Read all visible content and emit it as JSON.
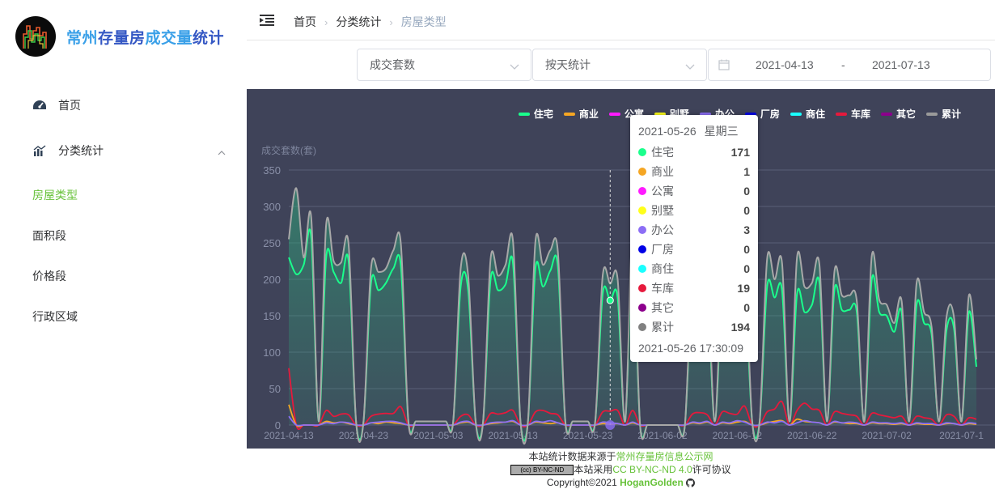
{
  "brand": {
    "title_part1": "常州",
    "title_part2": "存量房",
    "title_part3": "成交量",
    "title_part4": "统计"
  },
  "sidebar": {
    "home": "首页",
    "category": "分类统计",
    "sub": [
      "房屋类型",
      "面积段",
      "价格段",
      "行政区域"
    ]
  },
  "breadcrumb": {
    "home": "首页",
    "category": "分类统计",
    "current": "房屋类型"
  },
  "filters": {
    "metric": "成交套数",
    "granularity": "按天统计",
    "start_date": "2021-04-13",
    "separator": "-",
    "end_date": "2021-07-13"
  },
  "chart": {
    "ylabel": "成交套数(套)",
    "legend": [
      "住宅",
      "商业",
      "公寓",
      "别墅",
      "办公",
      "厂房",
      "商住",
      "车库",
      "其它",
      "累计"
    ],
    "colors": {
      "住宅": "#1aff8c",
      "商业": "#f5a623",
      "公寓": "#ff1aff",
      "别墅": "#ffff1a",
      "办公": "#8c6ef5",
      "厂房": "#0000e6",
      "商住": "#1affff",
      "车库": "#e6193c",
      "其它": "#8c008c",
      "累计": "#9a9a9a"
    }
  },
  "tooltip": {
    "date": "2021-05-26",
    "weekday": "星期三",
    "rows": [
      {
        "name": "住宅",
        "value": "171",
        "color": "#1aff8c"
      },
      {
        "name": "商业",
        "value": "1",
        "color": "#f5a623"
      },
      {
        "name": "公寓",
        "value": "0",
        "color": "#ff1aff"
      },
      {
        "name": "别墅",
        "value": "0",
        "color": "#ffff1a"
      },
      {
        "name": "办公",
        "value": "3",
        "color": "#8c6ef5"
      },
      {
        "name": "厂房",
        "value": "0",
        "color": "#0000e6"
      },
      {
        "name": "商住",
        "value": "0",
        "color": "#1affff"
      },
      {
        "name": "车库",
        "value": "19",
        "color": "#e6193c"
      },
      {
        "name": "其它",
        "value": "0",
        "color": "#8c008c"
      },
      {
        "name": "累计",
        "value": "194",
        "color": "#808080"
      }
    ],
    "timestamp": "2021-05-26 17:30:09"
  },
  "chart_data": {
    "type": "line",
    "ylabel": "成交套数(套)",
    "ylim": [
      0,
      350
    ],
    "yticks": [
      0,
      50,
      100,
      150,
      200,
      250,
      300,
      350
    ],
    "xticks": [
      "2021-04-13",
      "2021-04-23",
      "2021-05-03",
      "2021-05-13",
      "2021-05-23",
      "2021-06-02",
      "2021-06-12",
      "2021-06-22",
      "2021-07-02",
      "2021-07-1"
    ],
    "x_start": "2021-04-13",
    "x_end": "2021-07-13",
    "grid": true,
    "legend_position": "top-right",
    "series": [
      {
        "name": "住宅",
        "values": [
          230,
          207,
          220,
          258,
          5,
          230,
          210,
          195,
          225,
          5,
          5,
          195,
          185,
          195,
          215,
          218,
          5,
          5,
          5,
          5,
          5,
          5,
          5,
          190,
          185,
          5,
          5,
          200,
          185,
          193,
          222,
          5,
          5,
          215,
          190,
          212,
          218,
          5,
          5,
          5,
          5,
          5,
          180,
          171,
          175,
          5,
          235,
          0,
          0,
          0,
          0,
          0,
          0,
          0,
          200,
          190,
          185,
          5,
          190,
          195,
          170,
          193,
          5,
          5,
          190,
          175,
          185,
          5,
          180,
          155,
          165,
          195,
          5,
          185,
          158,
          158,
          155,
          5,
          200,
          155,
          150,
          128,
          155,
          5,
          165,
          140,
          125,
          5,
          130,
          133,
          5,
          155,
          80
        ]
      },
      {
        "name": "车库",
        "values": [
          78,
          0,
          0,
          0,
          0,
          20,
          12,
          15,
          14,
          0,
          0,
          12,
          15,
          16,
          16,
          25,
          0,
          0,
          0,
          0,
          0,
          0,
          0,
          12,
          14,
          0,
          0,
          16,
          15,
          17,
          20,
          0,
          0,
          18,
          20,
          16,
          14,
          0,
          0,
          0,
          0,
          0,
          18,
          19,
          20,
          0,
          20,
          0,
          0,
          0,
          0,
          0,
          0,
          0,
          15,
          17,
          14,
          0,
          18,
          16,
          15,
          26,
          0,
          0,
          18,
          22,
          32,
          0,
          20,
          30,
          22,
          20,
          0,
          18,
          16,
          14,
          12,
          0,
          16,
          14,
          12,
          10,
          12,
          0,
          12,
          10,
          8,
          0,
          14,
          12,
          0,
          10,
          8
        ]
      },
      {
        "name": "商业",
        "values": [
          28,
          0,
          0,
          0,
          0,
          5,
          3,
          4,
          2,
          0,
          0,
          3,
          2,
          4,
          3,
          2,
          0,
          0,
          0,
          0,
          0,
          0,
          0,
          3,
          4,
          0,
          0,
          2,
          3,
          4,
          5,
          0,
          0,
          4,
          3,
          2,
          3,
          0,
          0,
          0,
          0,
          0,
          2,
          1,
          2,
          0,
          3,
          0,
          0,
          0,
          0,
          0,
          0,
          0,
          3,
          2,
          4,
          0,
          3,
          2,
          4,
          5,
          0,
          0,
          3,
          5,
          6,
          0,
          8,
          5,
          4,
          3,
          0,
          4,
          3,
          2,
          2,
          0,
          3,
          2,
          2,
          1,
          2,
          0,
          2,
          1,
          1,
          0,
          2,
          2,
          0,
          2,
          1
        ]
      },
      {
        "name": "办公",
        "values": [
          12,
          0,
          0,
          0,
          0,
          3,
          2,
          4,
          3,
          0,
          0,
          3,
          4,
          5,
          5,
          3,
          0,
          0,
          0,
          0,
          0,
          0,
          0,
          4,
          5,
          0,
          0,
          3,
          4,
          4,
          6,
          0,
          0,
          5,
          4,
          6,
          3,
          0,
          0,
          0,
          0,
          0,
          4,
          3,
          2,
          0,
          4,
          0,
          0,
          0,
          0,
          0,
          0,
          0,
          4,
          3,
          5,
          0,
          4,
          3,
          6,
          4,
          0,
          0,
          4,
          3,
          5,
          0,
          3,
          6,
          4,
          3,
          0,
          5,
          3,
          4,
          3,
          0,
          4,
          3,
          3,
          2,
          3,
          0,
          3,
          2,
          2,
          0,
          3,
          2,
          0,
          3,
          2
        ]
      },
      {
        "name": "累计",
        "values": [
          255,
          325,
          230,
          285,
          5,
          275,
          225,
          223,
          248,
          5,
          5,
          215,
          210,
          215,
          240,
          248,
          5,
          5,
          5,
          5,
          5,
          5,
          5,
          215,
          205,
          5,
          5,
          228,
          205,
          220,
          252,
          5,
          5,
          252,
          220,
          240,
          238,
          5,
          5,
          5,
          5,
          5,
          205,
          194,
          200,
          5,
          260,
          0,
          0,
          0,
          0,
          0,
          0,
          0,
          215,
          210,
          210,
          5,
          215,
          215,
          195,
          225,
          5,
          5,
          228,
          200,
          222,
          5,
          230,
          190,
          195,
          220,
          5,
          210,
          178,
          178,
          170,
          5,
          232,
          172,
          165,
          140,
          170,
          5,
          195,
          155,
          135,
          5,
          148,
          148,
          5,
          178,
          90
        ]
      }
    ]
  },
  "footer": {
    "line1_prefix": "本站统计数据来源于",
    "line1_link": "常州存量房信息公示网",
    "cc_text": "(cc) BY-NC-ND",
    "line2_prefix": "本站采用",
    "line2_link": "CC BY-NC-ND 4.0",
    "line2_suffix": "许可协议",
    "copyright": "Copyright©2021 ",
    "author": "HoganGolden"
  }
}
